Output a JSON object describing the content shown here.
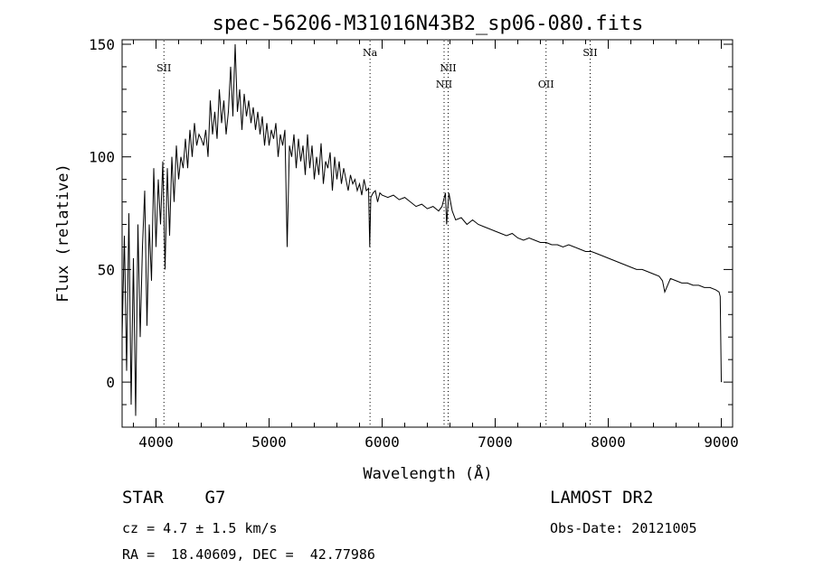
{
  "chart_data": {
    "type": "line",
    "title": "spec-56206-M31016N43B2_sp06-080.fits",
    "xlabel": "Wavelength (Å)",
    "ylabel": "Flux (relative)",
    "xlim": [
      3700,
      9100
    ],
    "ylim": [
      -20,
      152
    ],
    "xticks": [
      4000,
      5000,
      6000,
      7000,
      8000,
      9000
    ],
    "yticks": [
      0,
      50,
      100,
      150
    ],
    "grid": false,
    "series": [
      {
        "x": [
          3700,
          3720,
          3740,
          3760,
          3780,
          3800,
          3820,
          3840,
          3860,
          3880,
          3900,
          3920,
          3940,
          3960,
          3980,
          4000,
          4020,
          4040,
          4060,
          4080,
          4100,
          4120,
          4140,
          4160,
          4180,
          4200,
          4220,
          4240,
          4260,
          4280,
          4300,
          4320,
          4340,
          4360,
          4380,
          4400,
          4420,
          4440,
          4460,
          4480,
          4500,
          4520,
          4540,
          4560,
          4580,
          4600,
          4620,
          4640,
          4660,
          4680,
          4700,
          4720,
          4740,
          4760,
          4780,
          4800,
          4820,
          4840,
          4860,
          4880,
          4900,
          4920,
          4940,
          4960,
          4980,
          5000,
          5020,
          5040,
          5060,
          5080,
          5100,
          5120,
          5140,
          5160,
          5180,
          5200,
          5220,
          5240,
          5260,
          5280,
          5300,
          5320,
          5340,
          5360,
          5380,
          5400,
          5420,
          5440,
          5460,
          5480,
          5500,
          5520,
          5540,
          5560,
          5580,
          5600,
          5620,
          5640,
          5660,
          5680,
          5700,
          5720,
          5740,
          5760,
          5780,
          5800,
          5820,
          5840,
          5860,
          5880,
          5890,
          5900,
          5920,
          5940,
          5960,
          5980,
          6000,
          6050,
          6100,
          6150,
          6200,
          6250,
          6300,
          6350,
          6400,
          6450,
          6500,
          6530,
          6560,
          6570,
          6590,
          6620,
          6650,
          6700,
          6750,
          6800,
          6850,
          6900,
          6950,
          7000,
          7050,
          7100,
          7150,
          7200,
          7250,
          7300,
          7350,
          7400,
          7450,
          7500,
          7550,
          7600,
          7650,
          7700,
          7750,
          7800,
          7850,
          7900,
          7950,
          8000,
          8050,
          8100,
          8150,
          8200,
          8250,
          8300,
          8350,
          8400,
          8450,
          8480,
          8500,
          8550,
          8600,
          8650,
          8700,
          8750,
          8800,
          8850,
          8900,
          8950,
          8980,
          8990,
          9000
        ],
        "y": [
          20,
          65,
          5,
          75,
          -10,
          55,
          -15,
          70,
          20,
          60,
          85,
          25,
          70,
          45,
          95,
          60,
          90,
          70,
          98,
          50,
          95,
          65,
          100,
          80,
          105,
          90,
          100,
          95,
          108,
          95,
          112,
          100,
          115,
          105,
          110,
          108,
          105,
          112,
          100,
          125,
          110,
          120,
          108,
          130,
          115,
          125,
          110,
          120,
          140,
          118,
          150,
          120,
          130,
          112,
          128,
          118,
          125,
          115,
          122,
          112,
          120,
          110,
          118,
          105,
          115,
          105,
          112,
          108,
          115,
          100,
          110,
          105,
          112,
          60,
          105,
          100,
          110,
          95,
          108,
          98,
          105,
          92,
          110,
          95,
          105,
          90,
          100,
          92,
          106,
          88,
          98,
          95,
          102,
          85,
          100,
          90,
          98,
          88,
          95,
          90,
          85,
          92,
          88,
          90,
          85,
          88,
          83,
          90,
          85,
          86,
          60,
          82,
          84,
          85,
          80,
          84,
          83,
          82,
          83,
          81,
          82,
          80,
          78,
          79,
          77,
          78,
          76,
          78,
          84,
          70,
          84,
          76,
          72,
          73,
          70,
          72,
          70,
          69,
          68,
          67,
          66,
          65,
          66,
          64,
          63,
          64,
          63,
          62,
          62,
          61,
          61,
          60,
          61,
          60,
          59,
          58,
          58,
          57,
          56,
          55,
          54,
          53,
          52,
          51,
          50,
          50,
          49,
          48,
          47,
          45,
          40,
          46,
          45,
          44,
          44,
          43,
          43,
          42,
          42,
          41,
          40,
          38,
          0
        ]
      }
    ],
    "line_markers": [
      {
        "label": "SII",
        "x": 4070,
        "row": 0
      },
      {
        "label": "Na",
        "x": 5893,
        "row": -1
      },
      {
        "label": "NII",
        "x": 6548,
        "row": 1
      },
      {
        "label": "NII",
        "x": 6584,
        "row": 0
      },
      {
        "label": "OII",
        "x": 7450,
        "row": 1
      },
      {
        "label": "SII",
        "x": 7840,
        "row": -1
      }
    ]
  },
  "info": {
    "classification": "STAR    G7",
    "survey": "LAMOST DR2",
    "redshift": "cz = 4.7 ± 1.5 km/s",
    "obs_date": "Obs-Date: 20121005",
    "coords": "RA =  18.40609, DEC =  42.77986"
  }
}
